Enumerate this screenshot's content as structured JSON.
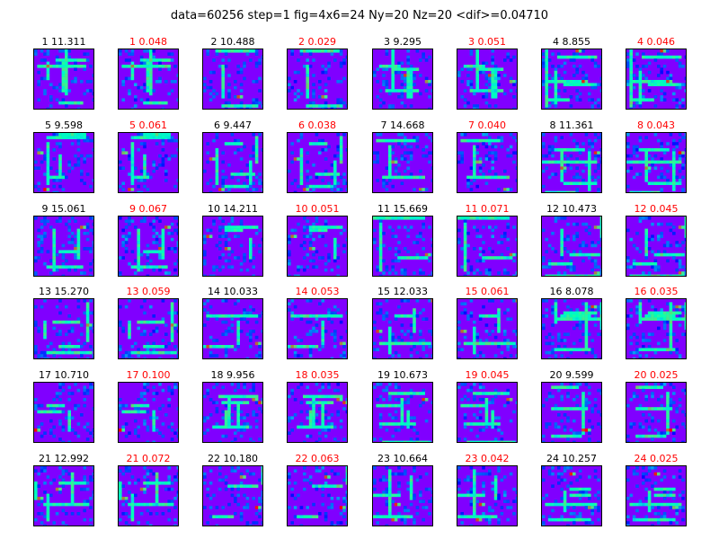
{
  "figure": {
    "suptitle": "data=60256 step=1 fig=4x6=24 Ny=20 Nz=20 <dif>=0.04710",
    "grid_rows": 6,
    "grid_cols": 8,
    "heatmap_size": 20,
    "colormap": "rainbow",
    "colors": {
      "raw_title": "#000000",
      "dif_title": "#ff0000",
      "background": "#8000ff"
    }
  },
  "chart_data": {
    "type": "heatmap",
    "description_order": "row-major, 8 panels per row; each sample shows original (black title) then difference (red title)",
    "panels": [
      {
        "label": "1 11.311",
        "kind": "raw"
      },
      {
        "label": "1 0.048",
        "kind": "dif"
      },
      {
        "label": "2 10.488",
        "kind": "raw"
      },
      {
        "label": "2 0.029",
        "kind": "dif"
      },
      {
        "label": "3 9.295",
        "kind": "raw"
      },
      {
        "label": "3 0.051",
        "kind": "dif"
      },
      {
        "label": "4 8.855",
        "kind": "raw"
      },
      {
        "label": "4 0.046",
        "kind": "dif"
      },
      {
        "label": "5 9.598",
        "kind": "raw"
      },
      {
        "label": "5 0.061",
        "kind": "dif"
      },
      {
        "label": "6 9.447",
        "kind": "raw"
      },
      {
        "label": "6 0.038",
        "kind": "dif"
      },
      {
        "label": "7 14.668",
        "kind": "raw"
      },
      {
        "label": "7 0.040",
        "kind": "dif"
      },
      {
        "label": "8 11.361",
        "kind": "raw"
      },
      {
        "label": "8 0.043",
        "kind": "dif"
      },
      {
        "label": "9 15.061",
        "kind": "raw"
      },
      {
        "label": "9 0.067",
        "kind": "dif"
      },
      {
        "label": "10 14.211",
        "kind": "raw"
      },
      {
        "label": "10 0.051",
        "kind": "dif"
      },
      {
        "label": "11 15.669",
        "kind": "raw"
      },
      {
        "label": "11 0.071",
        "kind": "dif"
      },
      {
        "label": "12 10.473",
        "kind": "raw"
      },
      {
        "label": "12 0.045",
        "kind": "dif"
      },
      {
        "label": "13 15.270",
        "kind": "raw"
      },
      {
        "label": "13 0.059",
        "kind": "dif"
      },
      {
        "label": "14 10.033",
        "kind": "raw"
      },
      {
        "label": "14 0.053",
        "kind": "dif"
      },
      {
        "label": "15 12.033",
        "kind": "raw"
      },
      {
        "label": "15 0.061",
        "kind": "dif"
      },
      {
        "label": "16 8.078",
        "kind": "raw"
      },
      {
        "label": "16 0.035",
        "kind": "dif"
      },
      {
        "label": "17 10.710",
        "kind": "raw"
      },
      {
        "label": "17 0.100",
        "kind": "dif"
      },
      {
        "label": "18 9.956",
        "kind": "raw"
      },
      {
        "label": "18 0.035",
        "kind": "dif"
      },
      {
        "label": "19 10.673",
        "kind": "raw"
      },
      {
        "label": "19 0.045",
        "kind": "dif"
      },
      {
        "label": "20 9.599",
        "kind": "raw"
      },
      {
        "label": "20 0.025",
        "kind": "dif"
      },
      {
        "label": "21 12.992",
        "kind": "raw"
      },
      {
        "label": "21 0.072",
        "kind": "dif"
      },
      {
        "label": "22 10.180",
        "kind": "raw"
      },
      {
        "label": "22 0.063",
        "kind": "dif"
      },
      {
        "label": "23 10.664",
        "kind": "raw"
      },
      {
        "label": "23 0.042",
        "kind": "dif"
      },
      {
        "label": "24 10.257",
        "kind": "raw"
      },
      {
        "label": "24 0.025",
        "kind": "dif"
      }
    ]
  }
}
